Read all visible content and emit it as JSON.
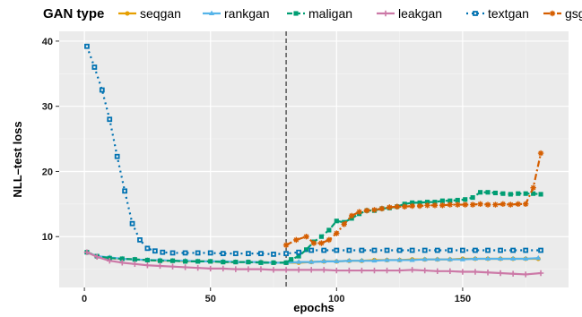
{
  "chart_data": {
    "type": "line",
    "xlabel": "epochs",
    "ylabel": "NLL–test loss",
    "legend_title": "GAN type",
    "legend_position": "top",
    "xlim": [
      -10,
      192
    ],
    "ylim": [
      2.2,
      41.5
    ],
    "x_ticks": [
      0,
      50,
      100,
      150
    ],
    "y_ticks": [
      10,
      20,
      30,
      40
    ],
    "x_tick_labels": [
      "0",
      "50",
      "100",
      "150"
    ],
    "y_tick_labels": [
      "10",
      "20",
      "30",
      "40"
    ],
    "grid": true,
    "vline_x": 80,
    "series": [
      {
        "name": "seqgan",
        "color": "#e69f00",
        "dash": "solid",
        "marker": "circle",
        "points": [
          [
            1,
            7.6
          ],
          [
            5,
            7.0
          ],
          [
            10,
            6.7
          ],
          [
            15,
            6.6
          ],
          [
            20,
            6.5
          ],
          [
            25,
            6.4
          ],
          [
            30,
            6.3
          ],
          [
            35,
            6.3
          ],
          [
            40,
            6.2
          ],
          [
            45,
            6.2
          ],
          [
            50,
            6.2
          ],
          [
            55,
            6.1
          ],
          [
            60,
            6.1
          ],
          [
            65,
            6.1
          ],
          [
            70,
            6.1
          ],
          [
            75,
            6.0
          ],
          [
            80,
            6.0
          ],
          [
            85,
            6.0
          ],
          [
            90,
            6.1
          ],
          [
            95,
            6.2
          ],
          [
            100,
            6.2
          ],
          [
            105,
            6.3
          ],
          [
            110,
            6.3
          ],
          [
            115,
            6.4
          ],
          [
            120,
            6.4
          ],
          [
            125,
            6.4
          ],
          [
            130,
            6.5
          ],
          [
            135,
            6.5
          ],
          [
            140,
            6.5
          ],
          [
            145,
            6.5
          ],
          [
            150,
            6.6
          ],
          [
            155,
            6.6
          ],
          [
            160,
            6.6
          ],
          [
            165,
            6.6
          ],
          [
            170,
            6.6
          ],
          [
            175,
            6.6
          ],
          [
            180,
            6.6
          ]
        ]
      },
      {
        "name": "rankgan",
        "color": "#56b4e9",
        "dash": "solid",
        "marker": "triangle",
        "points": [
          [
            1,
            7.6
          ],
          [
            5,
            7.0
          ],
          [
            10,
            6.8
          ],
          [
            15,
            6.6
          ],
          [
            20,
            6.5
          ],
          [
            25,
            6.4
          ],
          [
            30,
            6.4
          ],
          [
            35,
            6.3
          ],
          [
            40,
            6.3
          ],
          [
            45,
            6.2
          ],
          [
            50,
            6.2
          ],
          [
            55,
            6.2
          ],
          [
            60,
            6.1
          ],
          [
            65,
            6.1
          ],
          [
            70,
            6.1
          ],
          [
            75,
            6.0
          ],
          [
            80,
            6.0
          ],
          [
            85,
            6.1
          ],
          [
            90,
            6.1
          ],
          [
            95,
            6.2
          ],
          [
            100,
            6.2
          ],
          [
            105,
            6.3
          ],
          [
            110,
            6.3
          ],
          [
            115,
            6.3
          ],
          [
            120,
            6.4
          ],
          [
            125,
            6.4
          ],
          [
            130,
            6.4
          ],
          [
            135,
            6.5
          ],
          [
            140,
            6.5
          ],
          [
            145,
            6.5
          ],
          [
            150,
            6.5
          ],
          [
            155,
            6.6
          ],
          [
            160,
            6.6
          ],
          [
            165,
            6.6
          ],
          [
            170,
            6.6
          ],
          [
            175,
            6.6
          ],
          [
            180,
            6.7
          ]
        ]
      },
      {
        "name": "maligan",
        "color": "#009e73",
        "dash": "6,3",
        "marker": "square",
        "points": [
          [
            1,
            7.6
          ],
          [
            5,
            7.0
          ],
          [
            10,
            6.7
          ],
          [
            15,
            6.6
          ],
          [
            20,
            6.5
          ],
          [
            25,
            6.4
          ],
          [
            30,
            6.3
          ],
          [
            35,
            6.3
          ],
          [
            40,
            6.2
          ],
          [
            45,
            6.2
          ],
          [
            50,
            6.2
          ],
          [
            55,
            6.1
          ],
          [
            60,
            6.1
          ],
          [
            65,
            6.1
          ],
          [
            70,
            6.0
          ],
          [
            75,
            6.0
          ],
          [
            80,
            6.0
          ],
          [
            82,
            6.5
          ],
          [
            85,
            7.0
          ],
          [
            88,
            8.0
          ],
          [
            91,
            9.2
          ],
          [
            94,
            10.0
          ],
          [
            97,
            11.0
          ],
          [
            100,
            12.4
          ],
          [
            103,
            12.2
          ],
          [
            106,
            12.8
          ],
          [
            109,
            13.5
          ],
          [
            112,
            14.0
          ],
          [
            115,
            14.0
          ],
          [
            118,
            14.3
          ],
          [
            121,
            14.4
          ],
          [
            124,
            14.6
          ],
          [
            127,
            15.0
          ],
          [
            130,
            15.2
          ],
          [
            133,
            15.2
          ],
          [
            136,
            15.3
          ],
          [
            139,
            15.3
          ],
          [
            142,
            15.5
          ],
          [
            145,
            15.5
          ],
          [
            148,
            15.6
          ],
          [
            151,
            15.7
          ],
          [
            154,
            16.0
          ],
          [
            157,
            16.8
          ],
          [
            160,
            16.8
          ],
          [
            163,
            16.7
          ],
          [
            166,
            16.6
          ],
          [
            169,
            16.5
          ],
          [
            172,
            16.6
          ],
          [
            175,
            16.6
          ],
          [
            178,
            16.6
          ],
          [
            181,
            16.5
          ]
        ]
      },
      {
        "name": "leakgan",
        "color": "#cc79a7",
        "dash": "solid",
        "marker": "plus",
        "points": [
          [
            1,
            7.6
          ],
          [
            5,
            6.9
          ],
          [
            10,
            6.3
          ],
          [
            15,
            6.0
          ],
          [
            20,
            5.8
          ],
          [
            25,
            5.6
          ],
          [
            30,
            5.5
          ],
          [
            35,
            5.4
          ],
          [
            40,
            5.3
          ],
          [
            45,
            5.2
          ],
          [
            50,
            5.1
          ],
          [
            55,
            5.1
          ],
          [
            60,
            5.0
          ],
          [
            65,
            5.0
          ],
          [
            70,
            5.0
          ],
          [
            75,
            4.9
          ],
          [
            80,
            4.9
          ],
          [
            85,
            4.9
          ],
          [
            90,
            4.9
          ],
          [
            95,
            4.9
          ],
          [
            100,
            4.8
          ],
          [
            105,
            4.8
          ],
          [
            110,
            4.8
          ],
          [
            115,
            4.8
          ],
          [
            120,
            4.8
          ],
          [
            125,
            4.8
          ],
          [
            130,
            4.9
          ],
          [
            135,
            4.8
          ],
          [
            140,
            4.7
          ],
          [
            145,
            4.7
          ],
          [
            150,
            4.6
          ],
          [
            155,
            4.6
          ],
          [
            160,
            4.5
          ],
          [
            165,
            4.4
          ],
          [
            170,
            4.3
          ],
          [
            175,
            4.2
          ],
          [
            181,
            4.4
          ]
        ]
      },
      {
        "name": "textgan",
        "color": "#0072b2",
        "dash": "2,4",
        "marker": "square-open",
        "points": [
          [
            1,
            39.2
          ],
          [
            4,
            36.0
          ],
          [
            7,
            32.5
          ],
          [
            10,
            28.0
          ],
          [
            13,
            22.3
          ],
          [
            16,
            17.0
          ],
          [
            19,
            12.0
          ],
          [
            22,
            9.5
          ],
          [
            25,
            8.2
          ],
          [
            28,
            7.8
          ],
          [
            31,
            7.6
          ],
          [
            35,
            7.5
          ],
          [
            40,
            7.5
          ],
          [
            45,
            7.5
          ],
          [
            50,
            7.5
          ],
          [
            55,
            7.4
          ],
          [
            60,
            7.4
          ],
          [
            65,
            7.4
          ],
          [
            70,
            7.4
          ],
          [
            75,
            7.3
          ],
          [
            80,
            7.4
          ],
          [
            85,
            7.6
          ],
          [
            90,
            7.9
          ],
          [
            95,
            7.9
          ],
          [
            100,
            7.9
          ],
          [
            105,
            7.9
          ],
          [
            110,
            7.9
          ],
          [
            115,
            7.9
          ],
          [
            120,
            7.9
          ],
          [
            125,
            7.9
          ],
          [
            130,
            7.9
          ],
          [
            135,
            7.9
          ],
          [
            140,
            7.9
          ],
          [
            145,
            7.9
          ],
          [
            150,
            7.9
          ],
          [
            155,
            7.9
          ],
          [
            160,
            7.9
          ],
          [
            165,
            7.9
          ],
          [
            170,
            7.9
          ],
          [
            175,
            7.9
          ],
          [
            181,
            7.9
          ]
        ]
      },
      {
        "name": "gsgan",
        "color": "#d55e00",
        "dash": "7,3,2,3",
        "marker": "asterisk",
        "points": [
          [
            80,
            8.7
          ],
          [
            84,
            9.5
          ],
          [
            88,
            10.0
          ],
          [
            91,
            9.0
          ],
          [
            94,
            9.0
          ],
          [
            97,
            9.5
          ],
          [
            100,
            10.5
          ],
          [
            103,
            11.9
          ],
          [
            106,
            13.2
          ],
          [
            109,
            13.8
          ],
          [
            112,
            14.0
          ],
          [
            115,
            14.1
          ],
          [
            118,
            14.3
          ],
          [
            121,
            14.5
          ],
          [
            124,
            14.6
          ],
          [
            127,
            14.6
          ],
          [
            130,
            14.7
          ],
          [
            133,
            14.7
          ],
          [
            136,
            14.8
          ],
          [
            139,
            14.8
          ],
          [
            142,
            14.8
          ],
          [
            145,
            14.9
          ],
          [
            148,
            14.9
          ],
          [
            151,
            14.9
          ],
          [
            154,
            14.9
          ],
          [
            157,
            15.0
          ],
          [
            160,
            14.9
          ],
          [
            163,
            14.9
          ],
          [
            166,
            15.0
          ],
          [
            169,
            14.9
          ],
          [
            172,
            15.0
          ],
          [
            175,
            15.0
          ],
          [
            178,
            17.5
          ],
          [
            181,
            22.8
          ]
        ]
      }
    ]
  }
}
